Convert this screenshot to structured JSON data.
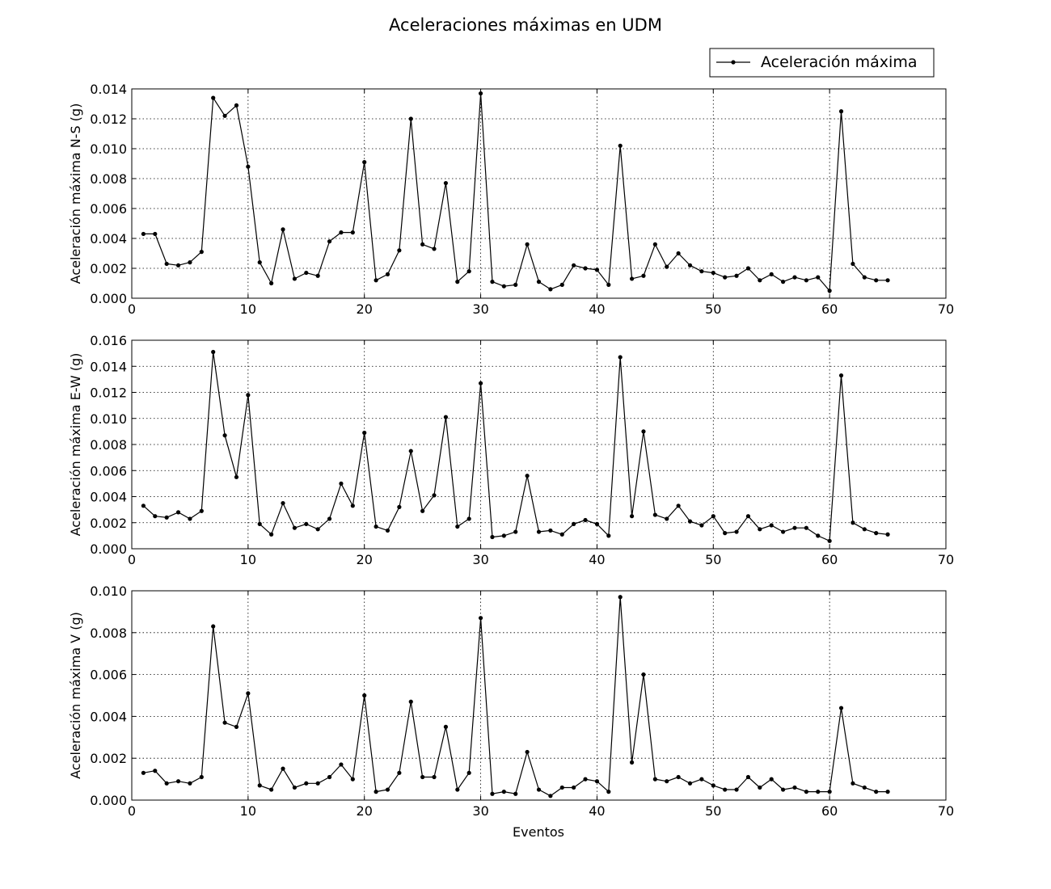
{
  "figure": {
    "title": "Aceleraciones máximas en UDM",
    "xlabel": "Eventos",
    "legend": {
      "label": "Aceleración máxima",
      "placement": "top-right",
      "marker": "dot-line"
    }
  },
  "chart_data": [
    {
      "type": "line",
      "ylabel": "Aceleración máxima N-S (g)",
      "xlim": [
        0,
        70
      ],
      "ylim": [
        0,
        0.014
      ],
      "xticks": [
        0,
        10,
        20,
        30,
        40,
        50,
        60,
        70
      ],
      "yticks": [
        "0.000",
        "0.002",
        "0.004",
        "0.006",
        "0.008",
        "0.010",
        "0.012",
        "0.014"
      ],
      "grid": true,
      "color": "#000000",
      "series": [
        {
          "name": "Aceleración máxima",
          "x": [
            1,
            2,
            3,
            4,
            5,
            6,
            7,
            8,
            9,
            10,
            11,
            12,
            13,
            14,
            15,
            16,
            17,
            18,
            19,
            20,
            21,
            22,
            23,
            24,
            25,
            26,
            27,
            28,
            29,
            30,
            31,
            32,
            33,
            34,
            35,
            36,
            37,
            38,
            39,
            40,
            41,
            42,
            43,
            44,
            45,
            46,
            47,
            48,
            49,
            50,
            51,
            52,
            53,
            54,
            55,
            56,
            57,
            58,
            59,
            60,
            61,
            62,
            63,
            64,
            65
          ],
          "y": [
            0.0043,
            0.0043,
            0.0023,
            0.0022,
            0.0024,
            0.0031,
            0.0134,
            0.0122,
            0.0129,
            0.0088,
            0.0024,
            0.001,
            0.0046,
            0.0013,
            0.0017,
            0.0015,
            0.0038,
            0.0044,
            0.0044,
            0.0091,
            0.0012,
            0.0016,
            0.0032,
            0.012,
            0.0036,
            0.0033,
            0.0077,
            0.0011,
            0.0018,
            0.0137,
            0.0011,
            0.0008,
            0.0009,
            0.0036,
            0.0011,
            0.0006,
            0.0009,
            0.0022,
            0.002,
            0.0019,
            0.0009,
            0.0102,
            0.0013,
            0.0015,
            0.0036,
            0.0021,
            0.003,
            0.0022,
            0.0018,
            0.0017,
            0.0014,
            0.0015,
            0.002,
            0.0012,
            0.0016,
            0.0011,
            0.0014,
            0.0012,
            0.0014,
            0.0005,
            0.0125,
            0.0023,
            0.0014,
            0.0012,
            0.0012
          ]
        }
      ]
    },
    {
      "type": "line",
      "ylabel": "Aceleración máxima E-W (g)",
      "xlim": [
        0,
        70
      ],
      "ylim": [
        0,
        0.016
      ],
      "xticks": [
        0,
        10,
        20,
        30,
        40,
        50,
        60,
        70
      ],
      "yticks": [
        "0.000",
        "0.002",
        "0.004",
        "0.006",
        "0.008",
        "0.010",
        "0.012",
        "0.014",
        "0.016"
      ],
      "grid": true,
      "color": "#000000",
      "series": [
        {
          "name": "Aceleración máxima",
          "x": [
            1,
            2,
            3,
            4,
            5,
            6,
            7,
            8,
            9,
            10,
            11,
            12,
            13,
            14,
            15,
            16,
            17,
            18,
            19,
            20,
            21,
            22,
            23,
            24,
            25,
            26,
            27,
            28,
            29,
            30,
            31,
            32,
            33,
            34,
            35,
            36,
            37,
            38,
            39,
            40,
            41,
            42,
            43,
            44,
            45,
            46,
            47,
            48,
            49,
            50,
            51,
            52,
            53,
            54,
            55,
            56,
            57,
            58,
            59,
            60,
            61,
            62,
            63,
            64,
            65
          ],
          "y": [
            0.0033,
            0.0025,
            0.0024,
            0.0028,
            0.0023,
            0.0029,
            0.0151,
            0.0087,
            0.0055,
            0.0118,
            0.0019,
            0.0011,
            0.0035,
            0.0016,
            0.0019,
            0.0015,
            0.0023,
            0.005,
            0.0033,
            0.0089,
            0.0017,
            0.0014,
            0.0032,
            0.0075,
            0.0029,
            0.0041,
            0.0101,
            0.0017,
            0.0023,
            0.0127,
            0.0009,
            0.001,
            0.0013,
            0.0056,
            0.0013,
            0.0014,
            0.0011,
            0.0019,
            0.0022,
            0.0019,
            0.001,
            0.0147,
            0.0025,
            0.009,
            0.0026,
            0.0023,
            0.0033,
            0.0021,
            0.0018,
            0.0025,
            0.0012,
            0.0013,
            0.0025,
            0.0015,
            0.0018,
            0.0013,
            0.0016,
            0.0016,
            0.001,
            0.0006,
            0.0133,
            0.002,
            0.0015,
            0.0012,
            0.0011
          ]
        }
      ]
    },
    {
      "type": "line",
      "ylabel": "Aceleración máxima V (g)",
      "xlabel": "Eventos",
      "xlim": [
        0,
        70
      ],
      "ylim": [
        0,
        0.01
      ],
      "xticks": [
        0,
        10,
        20,
        30,
        40,
        50,
        60,
        70
      ],
      "yticks": [
        "0.000",
        "0.002",
        "0.004",
        "0.006",
        "0.008",
        "0.010"
      ],
      "grid": true,
      "color": "#000000",
      "series": [
        {
          "name": "Aceleración máxima",
          "x": [
            1,
            2,
            3,
            4,
            5,
            6,
            7,
            8,
            9,
            10,
            11,
            12,
            13,
            14,
            15,
            16,
            17,
            18,
            19,
            20,
            21,
            22,
            23,
            24,
            25,
            26,
            27,
            28,
            29,
            30,
            31,
            32,
            33,
            34,
            35,
            36,
            37,
            38,
            39,
            40,
            41,
            42,
            43,
            44,
            45,
            46,
            47,
            48,
            49,
            50,
            51,
            52,
            53,
            54,
            55,
            56,
            57,
            58,
            59,
            60,
            61,
            62,
            63,
            64,
            65
          ],
          "y": [
            0.0013,
            0.0014,
            0.0008,
            0.0009,
            0.0008,
            0.0011,
            0.0083,
            0.0037,
            0.0035,
            0.0051,
            0.0007,
            0.0005,
            0.0015,
            0.0006,
            0.0008,
            0.0008,
            0.0011,
            0.0017,
            0.001,
            0.005,
            0.0004,
            0.0005,
            0.0013,
            0.0047,
            0.0011,
            0.0011,
            0.0035,
            0.0005,
            0.0013,
            0.0087,
            0.0003,
            0.0004,
            0.0003,
            0.0023,
            0.0005,
            0.0002,
            0.0006,
            0.0006,
            0.001,
            0.0009,
            0.0004,
            0.0097,
            0.0018,
            0.006,
            0.001,
            0.0009,
            0.0011,
            0.0008,
            0.001,
            0.0007,
            0.0005,
            0.0005,
            0.0011,
            0.0006,
            0.001,
            0.0005,
            0.0006,
            0.0004,
            0.0004,
            0.0004,
            0.0044,
            0.0008,
            0.0006,
            0.0004,
            0.0004
          ]
        }
      ]
    }
  ]
}
